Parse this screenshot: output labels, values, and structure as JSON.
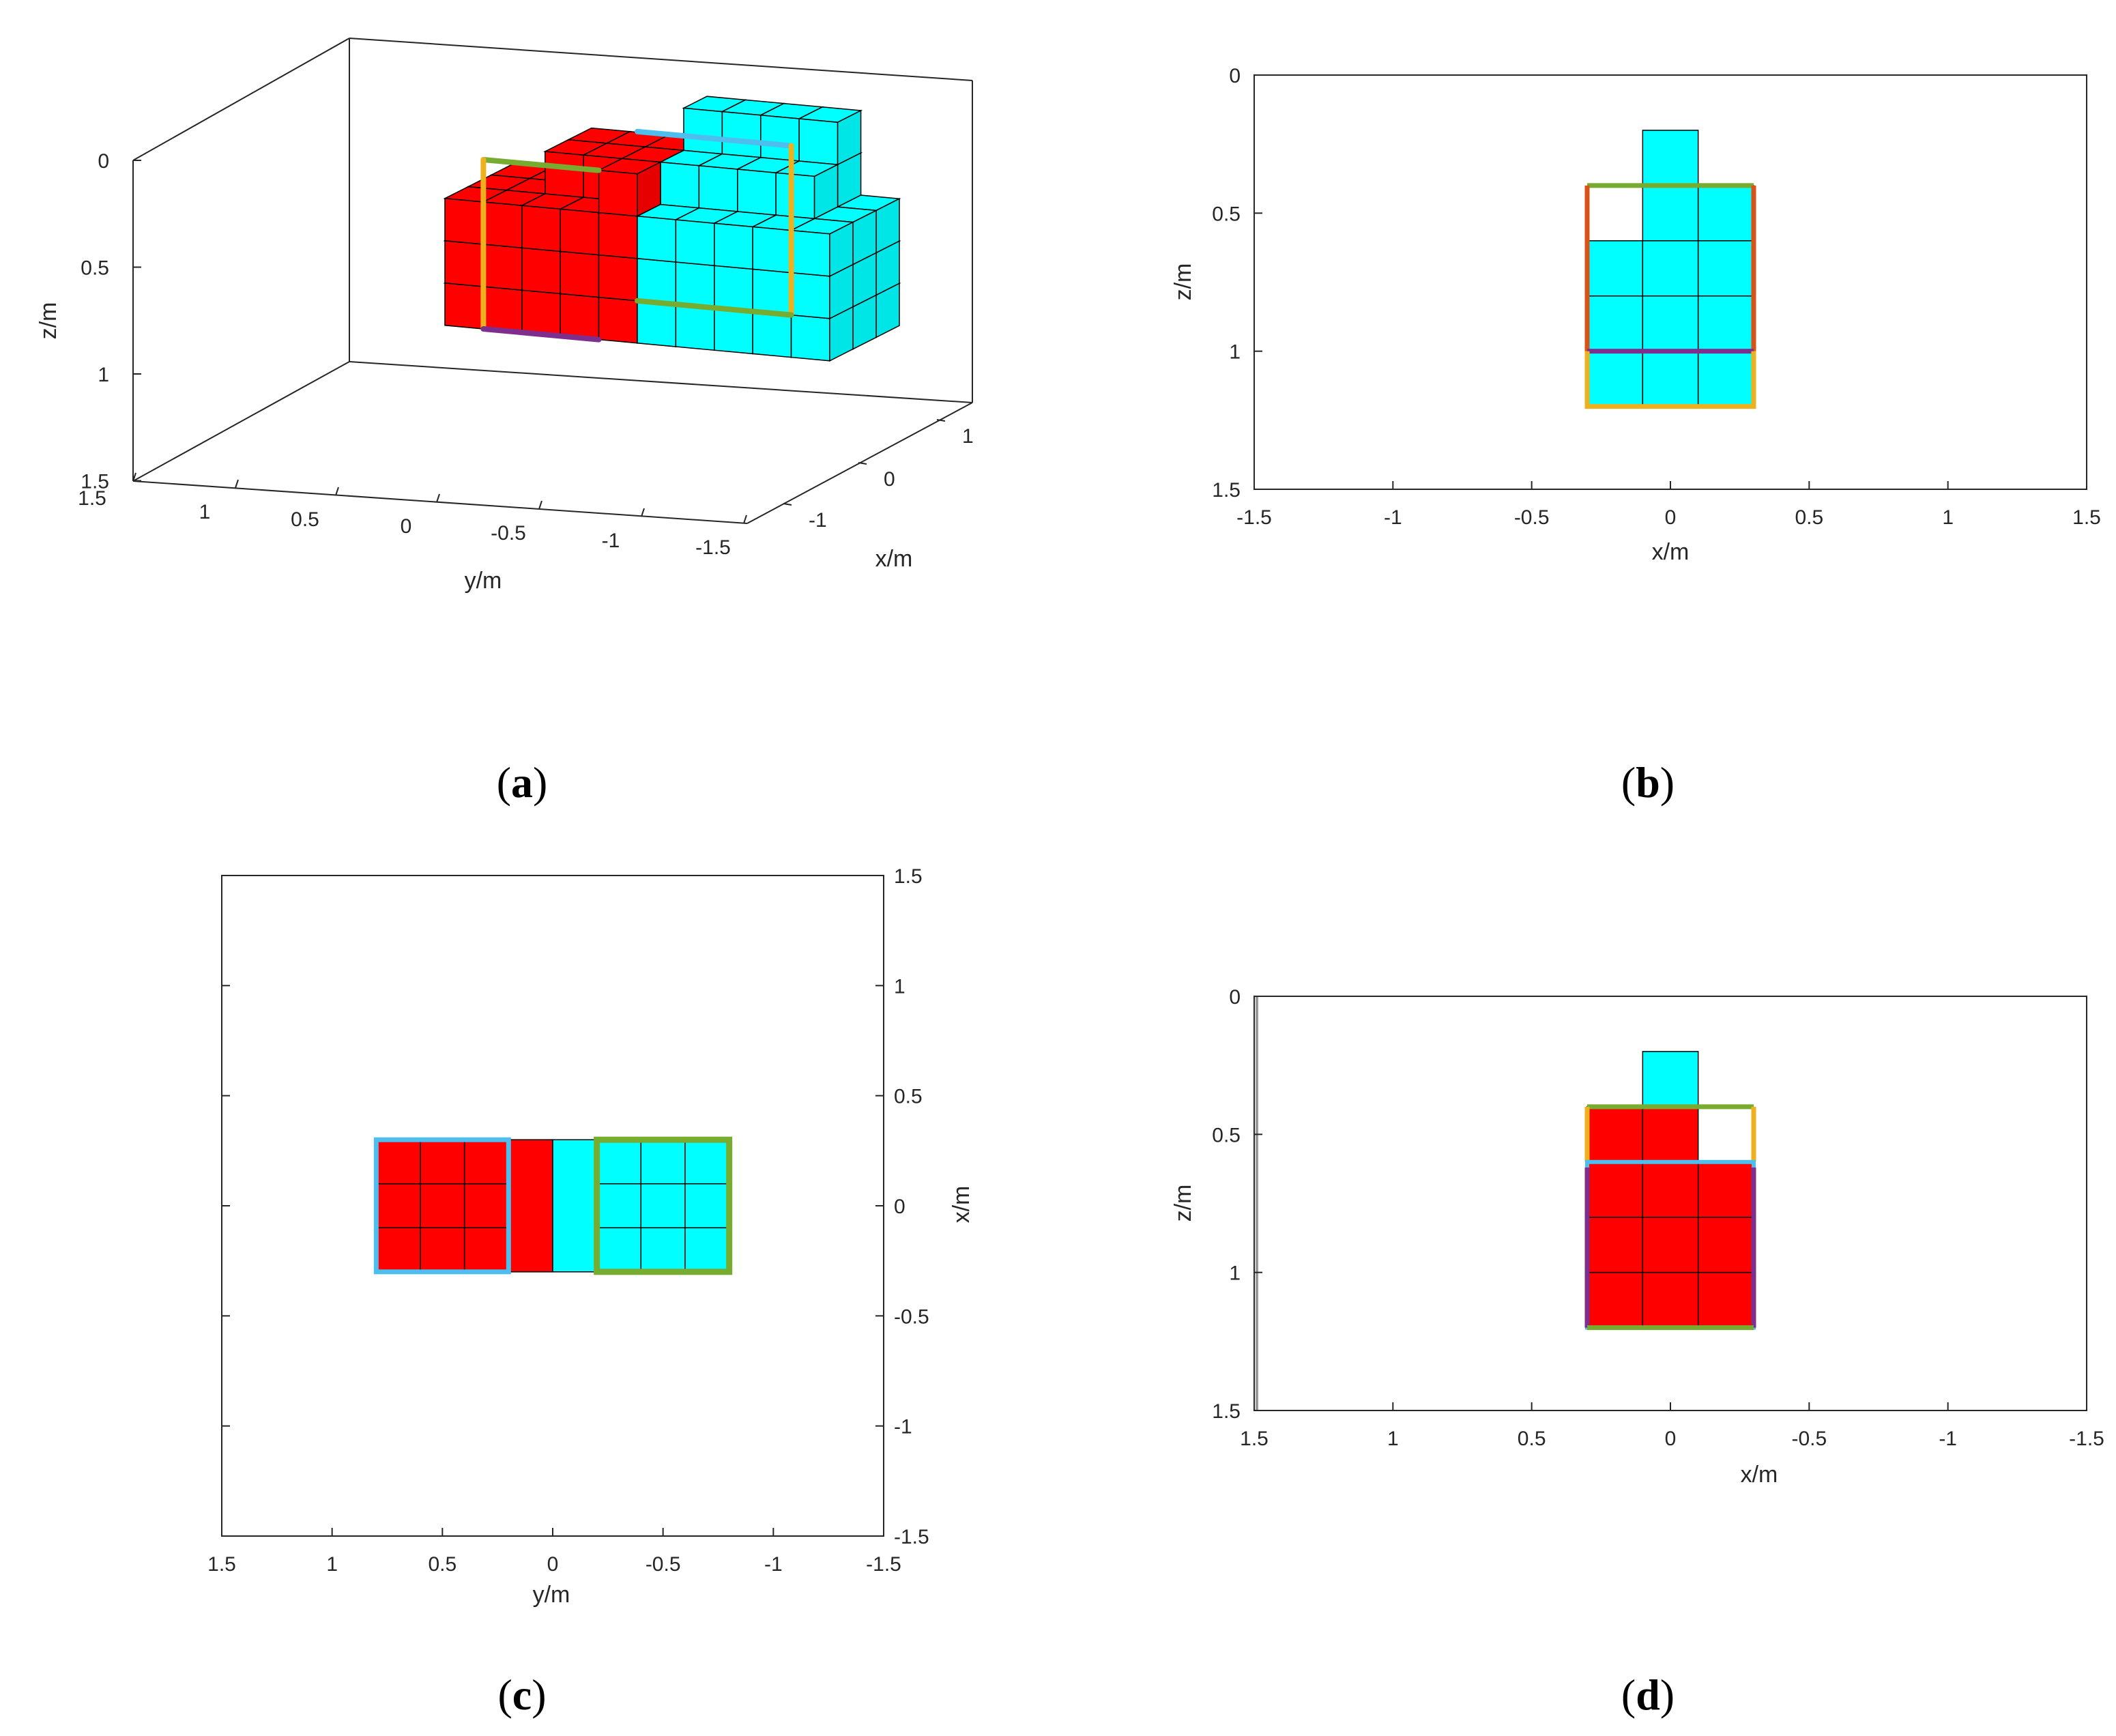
{
  "figure": {
    "captions": [
      {
        "id": "a",
        "open": "(",
        "letter": "a",
        "close": ")"
      },
      {
        "id": "b",
        "open": "(",
        "letter": "b",
        "close": ")"
      },
      {
        "id": "c",
        "open": "(",
        "letter": "c",
        "close": ")"
      },
      {
        "id": "d",
        "open": "(",
        "letter": "d",
        "close": ")"
      }
    ]
  },
  "colors": {
    "red": "#ff0000",
    "cyan": "#00ffff",
    "green": "#77ac30",
    "orange": "#edb120",
    "purple": "#7e2f8e",
    "lightblue": "#4dbeee",
    "rust": "#d95319",
    "axis": "#262626",
    "cellEdge": "#000000"
  },
  "chart_data": [
    {
      "id": "a",
      "type": "3d-voxel",
      "title": "",
      "xlabel": "x/m",
      "ylabel": "y/m",
      "zlabel": "z/m",
      "xlim": [
        -1.5,
        1.5
      ],
      "ylim": [
        -1.5,
        1.5
      ],
      "zlim": [
        0,
        1.5
      ],
      "z_reversed": true,
      "xticks": [
        "1",
        "0",
        "-1"
      ],
      "yticks": [
        "1.5",
        "1",
        "0.5",
        "0",
        "-0.5",
        "-1",
        "-1.5"
      ],
      "zticks": [
        "0",
        "0.5",
        "1",
        "1.5"
      ],
      "voxel_size": 0.2,
      "objects": [
        {
          "name": "red",
          "y_range": [
            0.2,
            0.8
          ],
          "z_range": [
            0.4,
            1.2
          ]
        },
        {
          "name": "cyan",
          "y_range": [
            -0.8,
            0.0
          ],
          "z_range": [
            0.2,
            1.2
          ]
        }
      ]
    },
    {
      "id": "b",
      "type": "2d-voxel-projection",
      "xlabel": "x/m",
      "ylabel": "z/m",
      "xlim": [
        -1.5,
        1.5
      ],
      "ylim": [
        0,
        1.5
      ],
      "y_reversed": true,
      "xticks": [
        "-1.5",
        "-1",
        "-0.5",
        "0",
        "0.5",
        "1",
        "1.5"
      ],
      "yticks": [
        "0",
        "0.5",
        "1",
        "1.5"
      ],
      "cells": [
        {
          "x": [
            -0.1,
            0.1
          ],
          "z": [
            0.2,
            0.4
          ],
          "color": "cyan"
        },
        {
          "x": [
            -0.1,
            0.3
          ],
          "z": [
            0.4,
            0.6
          ],
          "color": "cyan"
        },
        {
          "x": [
            -0.3,
            0.3
          ],
          "z": [
            0.6,
            1.2
          ],
          "color": "cyan"
        }
      ],
      "frames": [
        {
          "color": "green",
          "edge": "top",
          "x": [
            -0.3,
            0.3
          ],
          "z": 0.4
        },
        {
          "color": "rust",
          "edge": "left",
          "x": -0.3,
          "z": [
            0.4,
            1.0
          ]
        },
        {
          "color": "rust",
          "edge": "right",
          "x": 0.3,
          "z": [
            0.4,
            1.0
          ]
        },
        {
          "color": "purple",
          "edge": "mid",
          "x": [
            -0.3,
            0.3
          ],
          "z": 1.0
        },
        {
          "color": "orange",
          "edge": "lower",
          "x": [
            -0.3,
            0.3
          ],
          "z": [
            1.0,
            1.2
          ]
        }
      ]
    },
    {
      "id": "c",
      "type": "2d-voxel-projection",
      "xlabel": "y/m",
      "ylabel": "x/m",
      "xlim": [
        1.5,
        -1.5
      ],
      "ylim": [
        -1.5,
        1.5
      ],
      "xticks": [
        "1.5",
        "1",
        "0.5",
        "0",
        "-0.5",
        "-1",
        "-1.5"
      ],
      "yticks": [
        "1.5",
        "1",
        "0.5",
        "0",
        "-0.5",
        "-1",
        "-1.5"
      ],
      "cells": [
        {
          "y": [
            0.2,
            0.8
          ],
          "x": [
            -0.3,
            0.3
          ],
          "color": "red"
        },
        {
          "y": [
            0.0,
            0.2
          ],
          "x": [
            -0.3,
            0.3
          ],
          "color": "red"
        },
        {
          "y": [
            -0.8,
            0.0
          ],
          "x": [
            -0.3,
            0.3
          ],
          "color": "cyan"
        }
      ],
      "frames": [
        {
          "color": "lightblue",
          "y": [
            0.2,
            0.8
          ],
          "x": [
            -0.3,
            0.3
          ]
        },
        {
          "color": "green",
          "y": [
            -0.8,
            -0.2
          ],
          "x": [
            -0.3,
            0.3
          ]
        }
      ]
    },
    {
      "id": "d",
      "type": "2d-voxel-projection",
      "xlabel": "x/m",
      "ylabel": "z/m",
      "xlim": [
        1.5,
        -1.5
      ],
      "ylim": [
        0,
        1.5
      ],
      "y_reversed": true,
      "xticks": [
        "1.5",
        "1",
        "0.5",
        "0",
        "-0.5",
        "-1",
        "-1.5"
      ],
      "yticks": [
        "0",
        "0.5",
        "1",
        "1.5"
      ],
      "cells": [
        {
          "x": [
            0.1,
            -0.1
          ],
          "z": [
            0.2,
            0.4
          ],
          "color": "cyan"
        },
        {
          "x": [
            0.3,
            -0.1
          ],
          "z": [
            0.4,
            0.6
          ],
          "color": "red"
        },
        {
          "x": [
            0.3,
            -0.3
          ],
          "z": [
            0.6,
            1.2
          ],
          "color": "red"
        }
      ],
      "frames": [
        {
          "color": "green",
          "edge": "top",
          "x": [
            0.3,
            -0.3
          ],
          "z": 0.4
        },
        {
          "color": "orange",
          "edge": "right",
          "x": -0.3,
          "z": [
            0.4,
            0.6
          ]
        },
        {
          "color": "lightblue",
          "edge": "box",
          "x": [
            0.3,
            -0.3
          ],
          "z": [
            0.6,
            1.2
          ]
        },
        {
          "color": "purple",
          "edge": "sides",
          "x": [
            0.3,
            -0.3
          ],
          "z": [
            0.6,
            1.2
          ]
        },
        {
          "color": "green",
          "edge": "bottom",
          "x": [
            0.3,
            -0.3
          ],
          "z": 1.2
        }
      ]
    }
  ]
}
